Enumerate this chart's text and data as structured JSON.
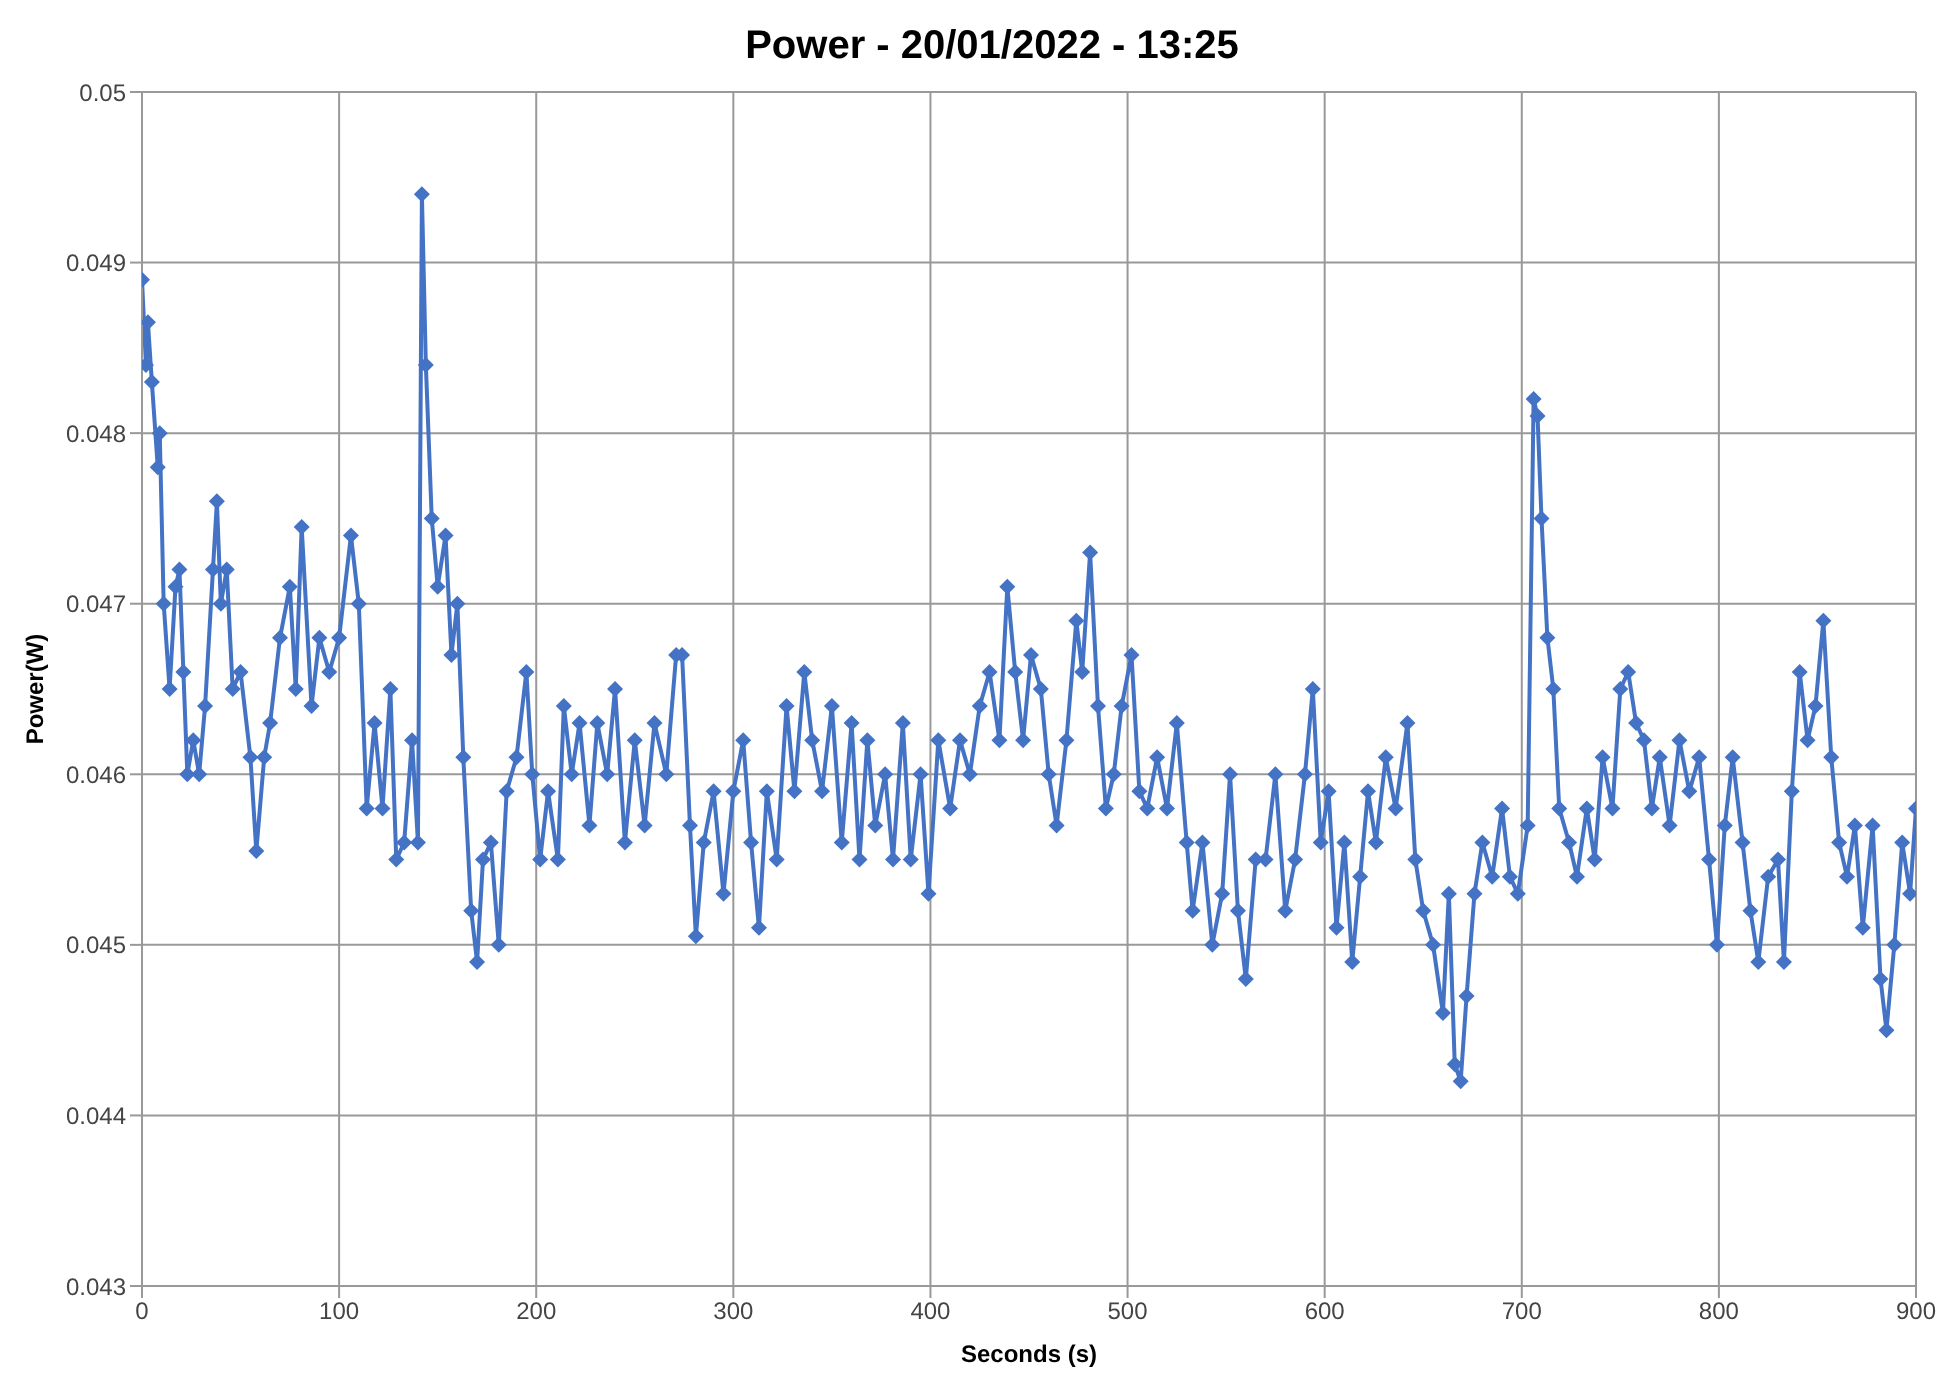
{
  "chart_data": {
    "type": "line",
    "title": "Power - 20/01/2022 - 13:25",
    "xlabel": "Seconds (s)",
    "ylabel": "Power(W)",
    "xlim": [
      0,
      900
    ],
    "xticks": [
      0,
      100,
      200,
      300,
      400,
      500,
      600,
      700,
      800,
      900
    ],
    "ylim": [
      0.043,
      0.05
    ],
    "yticks": [
      0.043,
      0.044,
      0.045,
      0.046,
      0.047,
      0.048,
      0.049,
      0.05
    ],
    "grid": true,
    "legend": false,
    "marker": "diamond",
    "line_style": "solid",
    "x": [
      0,
      2,
      3,
      5,
      8,
      9,
      11,
      14,
      17,
      19,
      21,
      23,
      26,
      29,
      32,
      36,
      38,
      40,
      43,
      46,
      50,
      55,
      58,
      62,
      65,
      70,
      75,
      78,
      81,
      86,
      90,
      95,
      100,
      106,
      110,
      114,
      118,
      122,
      126,
      129,
      133,
      137,
      140,
      142,
      144,
      147,
      150,
      154,
      157,
      160,
      163,
      167,
      170,
      173,
      177,
      181,
      185,
      190,
      195,
      198,
      202,
      206,
      211,
      214,
      218,
      222,
      227,
      231,
      236,
      240,
      245,
      250,
      255,
      260,
      266,
      271,
      274,
      278,
      281,
      285,
      290,
      295,
      300,
      305,
      309,
      313,
      317,
      322,
      327,
      331,
      336,
      340,
      345,
      350,
      355,
      360,
      364,
      368,
      372,
      377,
      381,
      386,
      390,
      395,
      399,
      404,
      410,
      415,
      420,
      425,
      430,
      435,
      439,
      443,
      447,
      451,
      456,
      460,
      464,
      469,
      474,
      477,
      481,
      485,
      489,
      493,
      497,
      502,
      506,
      510,
      515,
      520,
      525,
      530,
      533,
      538,
      543,
      548,
      552,
      556,
      560,
      565,
      570,
      575,
      580,
      585,
      590,
      594,
      598,
      602,
      606,
      610,
      614,
      618,
      622,
      626,
      631,
      636,
      642,
      646,
      650,
      655,
      660,
      663,
      666,
      669,
      672,
      676,
      680,
      685,
      690,
      694,
      698,
      703,
      706,
      708,
      710,
      713,
      716,
      719,
      724,
      728,
      733,
      737,
      741,
      746,
      750,
      754,
      758,
      762,
      766,
      770,
      775,
      780,
      785,
      790,
      795,
      799,
      803,
      807,
      812,
      816,
      820,
      825,
      830,
      833,
      837,
      841,
      845,
      849,
      853,
      857,
      861,
      865,
      869,
      873,
      878,
      882,
      885,
      889,
      893,
      897,
      900
    ],
    "series": [
      {
        "color": "#4472c4",
        "values": [
          0.0489,
          0.0484,
          0.04865,
          0.0483,
          0.0478,
          0.048,
          0.047,
          0.0465,
          0.0471,
          0.0472,
          0.0466,
          0.046,
          0.0462,
          0.046,
          0.0464,
          0.0472,
          0.0476,
          0.047,
          0.0472,
          0.0465,
          0.0466,
          0.0461,
          0.04555,
          0.0461,
          0.0463,
          0.0468,
          0.0471,
          0.0465,
          0.04745,
          0.0464,
          0.0468,
          0.0466,
          0.0468,
          0.0474,
          0.047,
          0.0458,
          0.0463,
          0.0458,
          0.0465,
          0.0455,
          0.0456,
          0.0462,
          0.0456,
          0.0494,
          0.0484,
          0.0475,
          0.0471,
          0.0474,
          0.0467,
          0.047,
          0.0461,
          0.0452,
          0.0449,
          0.0455,
          0.0456,
          0.045,
          0.0459,
          0.0461,
          0.0466,
          0.046,
          0.0455,
          0.0459,
          0.0455,
          0.0464,
          0.046,
          0.0463,
          0.0457,
          0.0463,
          0.046,
          0.0465,
          0.0456,
          0.0462,
          0.0457,
          0.0463,
          0.046,
          0.0467,
          0.0467,
          0.0457,
          0.04505,
          0.0456,
          0.0459,
          0.0453,
          0.0459,
          0.0462,
          0.0456,
          0.0451,
          0.0459,
          0.0455,
          0.0464,
          0.0459,
          0.0466,
          0.0462,
          0.0459,
          0.0464,
          0.0456,
          0.0463,
          0.0455,
          0.0462,
          0.0457,
          0.046,
          0.0455,
          0.0463,
          0.0455,
          0.046,
          0.0453,
          0.0462,
          0.0458,
          0.0462,
          0.046,
          0.0464,
          0.0466,
          0.0462,
          0.0471,
          0.0466,
          0.0462,
          0.0467,
          0.0465,
          0.046,
          0.0457,
          0.0462,
          0.0469,
          0.0466,
          0.0473,
          0.0464,
          0.0458,
          0.046,
          0.0464,
          0.0467,
          0.0459,
          0.0458,
          0.0461,
          0.0458,
          0.0463,
          0.0456,
          0.0452,
          0.0456,
          0.045,
          0.0453,
          0.046,
          0.0452,
          0.0448,
          0.0455,
          0.0455,
          0.046,
          0.0452,
          0.0455,
          0.046,
          0.0465,
          0.0456,
          0.0459,
          0.0451,
          0.0456,
          0.0449,
          0.0454,
          0.0459,
          0.0456,
          0.0461,
          0.0458,
          0.0463,
          0.0455,
          0.0452,
          0.045,
          0.0446,
          0.0453,
          0.0443,
          0.0442,
          0.0447,
          0.0453,
          0.0456,
          0.0454,
          0.0458,
          0.0454,
          0.0453,
          0.0457,
          0.0482,
          0.0481,
          0.0475,
          0.0468,
          0.0465,
          0.0458,
          0.0456,
          0.0454,
          0.0458,
          0.0455,
          0.0461,
          0.0458,
          0.0465,
          0.0466,
          0.0463,
          0.0462,
          0.0458,
          0.0461,
          0.0457,
          0.0462,
          0.0459,
          0.0461,
          0.0455,
          0.045,
          0.0457,
          0.0461,
          0.0456,
          0.0452,
          0.0449,
          0.0454,
          0.0455,
          0.0449,
          0.0459,
          0.0466,
          0.0462,
          0.0464,
          0.0469,
          0.0461,
          0.0456,
          0.0454,
          0.0457,
          0.0451,
          0.0457,
          0.0448,
          0.0445,
          0.045,
          0.0456,
          0.0453,
          0.0458
        ]
      }
    ]
  }
}
